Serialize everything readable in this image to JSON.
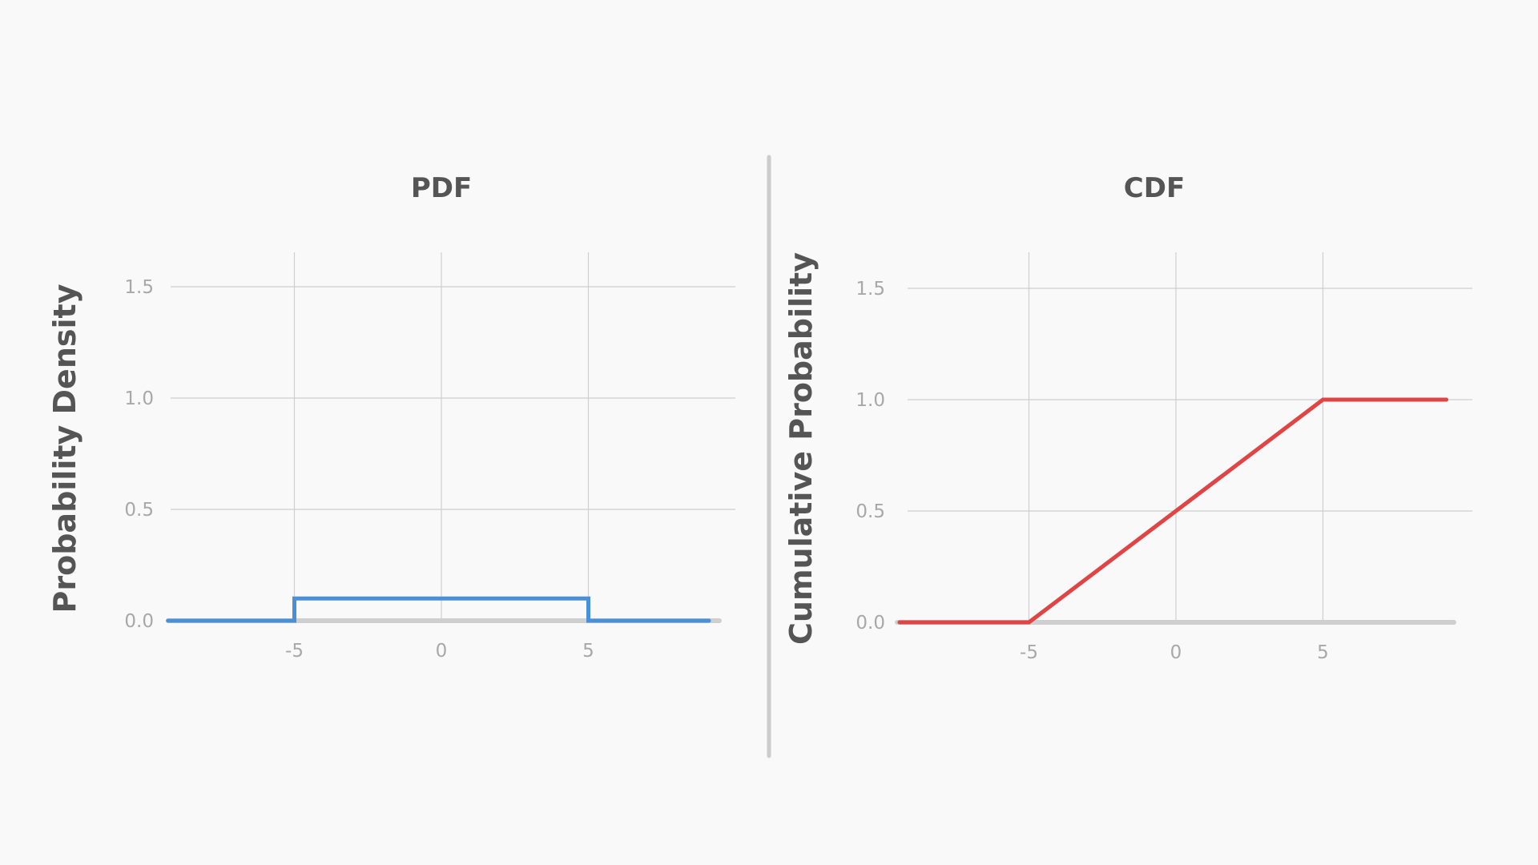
{
  "colors": {
    "background": "#f9f9f9",
    "pdf_line": "#4a90d9",
    "cdf_line": "#e04444",
    "grid": "#cfcfcf",
    "text": "#555555",
    "tick": "#a8a8a8"
  },
  "chart_data": [
    {
      "type": "line",
      "title": "PDF",
      "xlabel": "",
      "ylabel": "Probability Density",
      "xlim": [
        -10,
        9.5
      ],
      "ylim": [
        0,
        1.5
      ],
      "x_ticks": [
        -5,
        0,
        5
      ],
      "x_tick_labels": [
        "-5",
        "0",
        "5"
      ],
      "y_ticks": [
        0,
        0.5,
        1,
        1.5
      ],
      "y_tick_labels": [
        "0.0",
        "0.5",
        "1.0",
        "1.5"
      ],
      "grid": true,
      "series": [
        {
          "color": "#4a90d9",
          "x": [
            -9.3,
            -5,
            -5,
            5,
            5,
            9.1
          ],
          "y": [
            0,
            0,
            0.1,
            0.1,
            0,
            0
          ]
        }
      ]
    },
    {
      "type": "line",
      "title": "CDF",
      "xlabel": "",
      "ylabel": "Cumulative Probability",
      "xlim": [
        -10,
        9.5
      ],
      "ylim": [
        0,
        1.5
      ],
      "x_ticks": [
        -5,
        0,
        5
      ],
      "x_tick_labels": [
        "-5",
        "0",
        "5"
      ],
      "y_ticks": [
        0,
        0.5,
        1,
        1.5
      ],
      "y_tick_labels": [
        "0.0",
        "0.5",
        "1.0",
        "1.5"
      ],
      "grid": true,
      "series": [
        {
          "color": "#e04444",
          "x": [
            -9.4,
            -5,
            5,
            9.2
          ],
          "y": [
            0,
            0,
            1,
            1
          ]
        }
      ]
    }
  ]
}
